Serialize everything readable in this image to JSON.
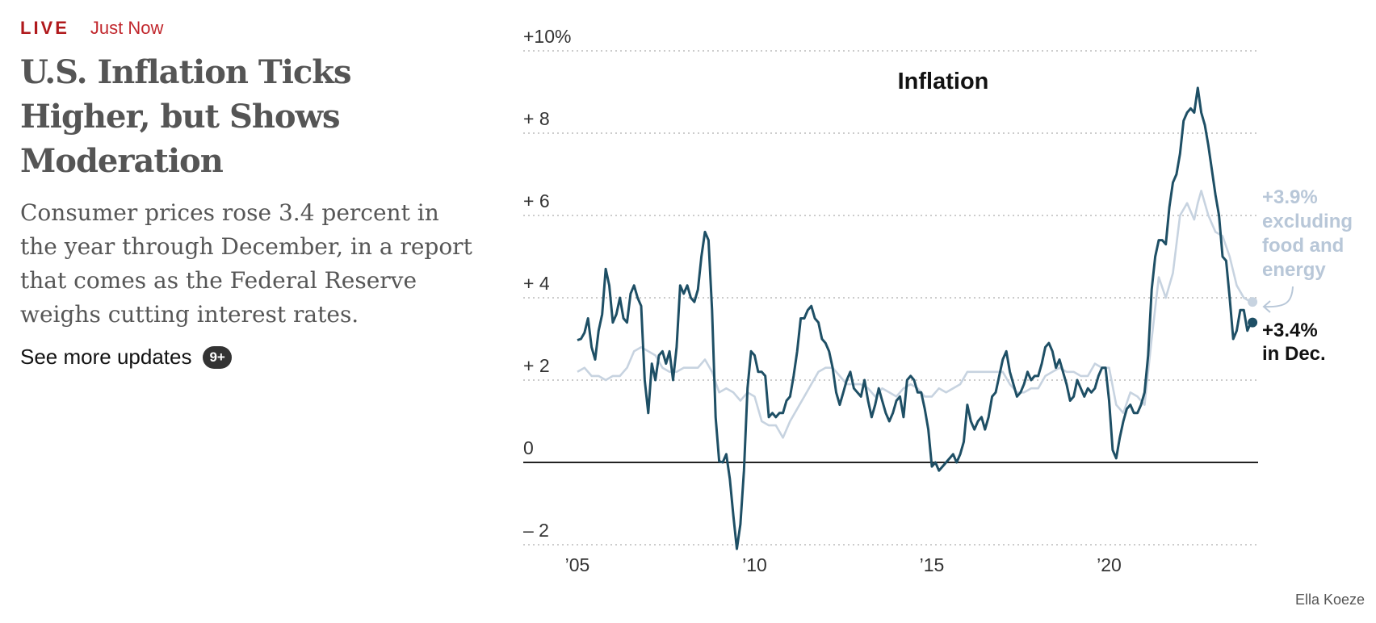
{
  "header": {
    "live_label": "LIVE",
    "time_label": "Just Now"
  },
  "article": {
    "headline": "U.S. Inflation Ticks Higher, but Shows Moderation",
    "summary": "Consumer prices rose 3.4 percent in the year through December, in a report that comes as the Federal Reserve weighs cutting interest rates.",
    "see_more": "See more updates",
    "updates_badge": "9+"
  },
  "credit": "Ella Koeze",
  "colors": {
    "headline": "#555555",
    "live": "#b0191c",
    "overall": "#1e4f65",
    "core": "#c7d3e0"
  },
  "chart_data": {
    "type": "line",
    "title": "Inflation",
    "y_ticks": [
      {
        "v": 10,
        "label": "+10%"
      },
      {
        "v": 8,
        "label": "+ 8"
      },
      {
        "v": 6,
        "label": "+ 6"
      },
      {
        "v": 4,
        "label": "+ 4"
      },
      {
        "v": 2,
        "label": "+ 2"
      },
      {
        "v": 0,
        "label": "0"
      },
      {
        "v": -2,
        "label": "– 2"
      }
    ],
    "x_ticks": [
      {
        "v": 2005,
        "label": "’05"
      },
      {
        "v": 2010,
        "label": "’10"
      },
      {
        "v": 2015,
        "label": "’15"
      },
      {
        "v": 2020,
        "label": "’20"
      }
    ],
    "xlim": [
      2004.6,
      2024.1
    ],
    "ylim": [
      -2.2,
      10.5
    ],
    "series": [
      {
        "key": "overall",
        "end_label_1": "+3.4%",
        "end_label_2": "in Dec.",
        "points": [
          [
            2005.0,
            2.97
          ],
          [
            2005.1,
            3.0
          ],
          [
            2005.2,
            3.15
          ],
          [
            2005.3,
            3.5
          ],
          [
            2005.4,
            2.8
          ],
          [
            2005.5,
            2.5
          ],
          [
            2005.6,
            3.2
          ],
          [
            2005.7,
            3.6
          ],
          [
            2005.8,
            4.7
          ],
          [
            2005.9,
            4.3
          ],
          [
            2006.0,
            3.4
          ],
          [
            2006.1,
            3.6
          ],
          [
            2006.2,
            4.0
          ],
          [
            2006.3,
            3.5
          ],
          [
            2006.4,
            3.4
          ],
          [
            2006.5,
            4.1
          ],
          [
            2006.6,
            4.3
          ],
          [
            2006.7,
            4.0
          ],
          [
            2006.8,
            3.8
          ],
          [
            2006.9,
            2.0
          ],
          [
            2007.0,
            1.2
          ],
          [
            2007.1,
            2.4
          ],
          [
            2007.2,
            2.0
          ],
          [
            2007.3,
            2.6
          ],
          [
            2007.4,
            2.7
          ],
          [
            2007.5,
            2.4
          ],
          [
            2007.6,
            2.7
          ],
          [
            2007.7,
            2.0
          ],
          [
            2007.8,
            2.8
          ],
          [
            2007.9,
            4.3
          ],
          [
            2008.0,
            4.1
          ],
          [
            2008.1,
            4.3
          ],
          [
            2008.2,
            4.0
          ],
          [
            2008.3,
            3.9
          ],
          [
            2008.4,
            4.2
          ],
          [
            2008.5,
            5.0
          ],
          [
            2008.6,
            5.6
          ],
          [
            2008.7,
            5.4
          ],
          [
            2008.8,
            3.7
          ],
          [
            2008.9,
            1.1
          ],
          [
            2009.0,
            0.03
          ],
          [
            2009.1,
            0.0
          ],
          [
            2009.2,
            0.2
          ],
          [
            2009.3,
            -0.4
          ],
          [
            2009.4,
            -1.3
          ],
          [
            2009.5,
            -2.1
          ],
          [
            2009.6,
            -1.5
          ],
          [
            2009.7,
            -0.2
          ],
          [
            2009.8,
            1.8
          ],
          [
            2009.9,
            2.7
          ],
          [
            2010.0,
            2.6
          ],
          [
            2010.1,
            2.2
          ],
          [
            2010.2,
            2.2
          ],
          [
            2010.3,
            2.1
          ],
          [
            2010.4,
            1.1
          ],
          [
            2010.5,
            1.2
          ],
          [
            2010.6,
            1.1
          ],
          [
            2010.7,
            1.2
          ],
          [
            2010.8,
            1.2
          ],
          [
            2010.9,
            1.5
          ],
          [
            2011.0,
            1.6
          ],
          [
            2011.1,
            2.1
          ],
          [
            2011.2,
            2.7
          ],
          [
            2011.3,
            3.5
          ],
          [
            2011.4,
            3.5
          ],
          [
            2011.5,
            3.7
          ],
          [
            2011.6,
            3.8
          ],
          [
            2011.7,
            3.5
          ],
          [
            2011.8,
            3.4
          ],
          [
            2011.9,
            3.0
          ],
          [
            2012.0,
            2.9
          ],
          [
            2012.1,
            2.7
          ],
          [
            2012.2,
            2.3
          ],
          [
            2012.3,
            1.7
          ],
          [
            2012.4,
            1.4
          ],
          [
            2012.5,
            1.7
          ],
          [
            2012.6,
            2.0
          ],
          [
            2012.7,
            2.2
          ],
          [
            2012.8,
            1.8
          ],
          [
            2012.9,
            1.7
          ],
          [
            2013.0,
            1.6
          ],
          [
            2013.1,
            2.0
          ],
          [
            2013.2,
            1.5
          ],
          [
            2013.3,
            1.1
          ],
          [
            2013.4,
            1.4
          ],
          [
            2013.5,
            1.8
          ],
          [
            2013.6,
            1.5
          ],
          [
            2013.7,
            1.2
          ],
          [
            2013.8,
            1.0
          ],
          [
            2013.9,
            1.2
          ],
          [
            2014.0,
            1.5
          ],
          [
            2014.1,
            1.6
          ],
          [
            2014.2,
            1.1
          ],
          [
            2014.3,
            2.0
          ],
          [
            2014.4,
            2.1
          ],
          [
            2014.5,
            2.0
          ],
          [
            2014.6,
            1.7
          ],
          [
            2014.7,
            1.7
          ],
          [
            2014.8,
            1.3
          ],
          [
            2014.9,
            0.8
          ],
          [
            2015.0,
            -0.1
          ],
          [
            2015.1,
            0.0
          ],
          [
            2015.2,
            -0.2
          ],
          [
            2015.3,
            -0.1
          ],
          [
            2015.4,
            0.0
          ],
          [
            2015.5,
            0.1
          ],
          [
            2015.6,
            0.2
          ],
          [
            2015.7,
            0.0
          ],
          [
            2015.8,
            0.2
          ],
          [
            2015.9,
            0.5
          ],
          [
            2016.0,
            1.4
          ],
          [
            2016.1,
            1.0
          ],
          [
            2016.2,
            0.8
          ],
          [
            2016.3,
            1.0
          ],
          [
            2016.4,
            1.1
          ],
          [
            2016.5,
            0.8
          ],
          [
            2016.6,
            1.1
          ],
          [
            2016.7,
            1.6
          ],
          [
            2016.8,
            1.7
          ],
          [
            2016.9,
            2.1
          ],
          [
            2017.0,
            2.5
          ],
          [
            2017.1,
            2.7
          ],
          [
            2017.2,
            2.2
          ],
          [
            2017.3,
            1.9
          ],
          [
            2017.4,
            1.6
          ],
          [
            2017.5,
            1.7
          ],
          [
            2017.6,
            1.9
          ],
          [
            2017.7,
            2.2
          ],
          [
            2017.8,
            2.0
          ],
          [
            2017.9,
            2.1
          ],
          [
            2018.0,
            2.1
          ],
          [
            2018.1,
            2.4
          ],
          [
            2018.2,
            2.8
          ],
          [
            2018.3,
            2.9
          ],
          [
            2018.4,
            2.7
          ],
          [
            2018.5,
            2.3
          ],
          [
            2018.6,
            2.5
          ],
          [
            2018.7,
            2.2
          ],
          [
            2018.8,
            1.9
          ],
          [
            2018.9,
            1.5
          ],
          [
            2019.0,
            1.6
          ],
          [
            2019.1,
            2.0
          ],
          [
            2019.2,
            1.8
          ],
          [
            2019.3,
            1.6
          ],
          [
            2019.4,
            1.8
          ],
          [
            2019.5,
            1.7
          ],
          [
            2019.6,
            1.8
          ],
          [
            2019.7,
            2.1
          ],
          [
            2019.8,
            2.3
          ],
          [
            2019.9,
            2.3
          ],
          [
            2020.0,
            1.5
          ],
          [
            2020.1,
            0.3
          ],
          [
            2020.2,
            0.1
          ],
          [
            2020.3,
            0.6
          ],
          [
            2020.4,
            1.0
          ],
          [
            2020.5,
            1.3
          ],
          [
            2020.6,
            1.4
          ],
          [
            2020.7,
            1.2
          ],
          [
            2020.8,
            1.2
          ],
          [
            2020.9,
            1.4
          ],
          [
            2021.0,
            1.7
          ],
          [
            2021.1,
            2.6
          ],
          [
            2021.2,
            4.2
          ],
          [
            2021.3,
            5.0
          ],
          [
            2021.4,
            5.4
          ],
          [
            2021.5,
            5.4
          ],
          [
            2021.6,
            5.3
          ],
          [
            2021.7,
            6.2
          ],
          [
            2021.8,
            6.8
          ],
          [
            2021.9,
            7.0
          ],
          [
            2022.0,
            7.5
          ],
          [
            2022.1,
            8.3
          ],
          [
            2022.2,
            8.5
          ],
          [
            2022.3,
            8.6
          ],
          [
            2022.4,
            8.5
          ],
          [
            2022.5,
            9.1
          ],
          [
            2022.6,
            8.5
          ],
          [
            2022.7,
            8.2
          ],
          [
            2022.8,
            7.7
          ],
          [
            2022.9,
            7.1
          ],
          [
            2023.0,
            6.5
          ],
          [
            2023.1,
            6.0
          ],
          [
            2023.2,
            5.0
          ],
          [
            2023.3,
            4.9
          ],
          [
            2023.4,
            4.0
          ],
          [
            2023.5,
            3.0
          ],
          [
            2023.6,
            3.2
          ],
          [
            2023.7,
            3.7
          ],
          [
            2023.8,
            3.7
          ],
          [
            2023.9,
            3.2
          ],
          [
            2024.0,
            3.4
          ]
        ]
      },
      {
        "key": "core",
        "end_label_1": "+3.9%",
        "end_label_2": "excluding",
        "end_label_3": "food and",
        "end_label_4": "energy",
        "points": [
          [
            2005.0,
            2.2
          ],
          [
            2005.2,
            2.3
          ],
          [
            2005.4,
            2.1
          ],
          [
            2005.6,
            2.1
          ],
          [
            2005.8,
            2.0
          ],
          [
            2006.0,
            2.1
          ],
          [
            2006.2,
            2.1
          ],
          [
            2006.4,
            2.3
          ],
          [
            2006.6,
            2.7
          ],
          [
            2006.8,
            2.8
          ],
          [
            2007.0,
            2.7
          ],
          [
            2007.2,
            2.6
          ],
          [
            2007.4,
            2.3
          ],
          [
            2007.6,
            2.2
          ],
          [
            2007.8,
            2.2
          ],
          [
            2008.0,
            2.3
          ],
          [
            2008.2,
            2.3
          ],
          [
            2008.4,
            2.3
          ],
          [
            2008.6,
            2.5
          ],
          [
            2008.8,
            2.2
          ],
          [
            2009.0,
            1.7
          ],
          [
            2009.2,
            1.8
          ],
          [
            2009.4,
            1.7
          ],
          [
            2009.6,
            1.5
          ],
          [
            2009.8,
            1.7
          ],
          [
            2010.0,
            1.6
          ],
          [
            2010.2,
            1.0
          ],
          [
            2010.4,
            0.9
          ],
          [
            2010.6,
            0.9
          ],
          [
            2010.8,
            0.6
          ],
          [
            2011.0,
            1.0
          ],
          [
            2011.2,
            1.3
          ],
          [
            2011.4,
            1.6
          ],
          [
            2011.6,
            1.9
          ],
          [
            2011.8,
            2.2
          ],
          [
            2012.0,
            2.3
          ],
          [
            2012.2,
            2.3
          ],
          [
            2012.4,
            2.1
          ],
          [
            2012.6,
            1.9
          ],
          [
            2012.8,
            1.9
          ],
          [
            2013.0,
            1.9
          ],
          [
            2013.2,
            1.8
          ],
          [
            2013.4,
            1.6
          ],
          [
            2013.6,
            1.8
          ],
          [
            2013.8,
            1.7
          ],
          [
            2014.0,
            1.6
          ],
          [
            2014.2,
            1.8
          ],
          [
            2014.4,
            1.9
          ],
          [
            2014.6,
            1.8
          ],
          [
            2014.8,
            1.6
          ],
          [
            2015.0,
            1.6
          ],
          [
            2015.2,
            1.8
          ],
          [
            2015.4,
            1.7
          ],
          [
            2015.6,
            1.8
          ],
          [
            2015.8,
            1.9
          ],
          [
            2016.0,
            2.2
          ],
          [
            2016.2,
            2.2
          ],
          [
            2016.4,
            2.2
          ],
          [
            2016.6,
            2.2
          ],
          [
            2016.8,
            2.2
          ],
          [
            2017.0,
            2.2
          ],
          [
            2017.2,
            1.9
          ],
          [
            2017.4,
            1.7
          ],
          [
            2017.6,
            1.7
          ],
          [
            2017.8,
            1.8
          ],
          [
            2018.0,
            1.8
          ],
          [
            2018.2,
            2.1
          ],
          [
            2018.4,
            2.2
          ],
          [
            2018.6,
            2.3
          ],
          [
            2018.8,
            2.2
          ],
          [
            2019.0,
            2.2
          ],
          [
            2019.2,
            2.1
          ],
          [
            2019.4,
            2.1
          ],
          [
            2019.6,
            2.4
          ],
          [
            2019.8,
            2.3
          ],
          [
            2020.0,
            2.3
          ],
          [
            2020.2,
            1.4
          ],
          [
            2020.4,
            1.2
          ],
          [
            2020.6,
            1.7
          ],
          [
            2020.8,
            1.6
          ],
          [
            2021.0,
            1.4
          ],
          [
            2021.2,
            3.0
          ],
          [
            2021.4,
            4.5
          ],
          [
            2021.6,
            4.0
          ],
          [
            2021.8,
            4.6
          ],
          [
            2022.0,
            6.0
          ],
          [
            2022.2,
            6.3
          ],
          [
            2022.4,
            5.9
          ],
          [
            2022.5,
            6.3
          ],
          [
            2022.6,
            6.6
          ],
          [
            2022.8,
            6.0
          ],
          [
            2023.0,
            5.6
          ],
          [
            2023.2,
            5.5
          ],
          [
            2023.4,
            5.0
          ],
          [
            2023.6,
            4.3
          ],
          [
            2023.8,
            4.0
          ],
          [
            2024.0,
            3.9
          ]
        ]
      }
    ]
  }
}
